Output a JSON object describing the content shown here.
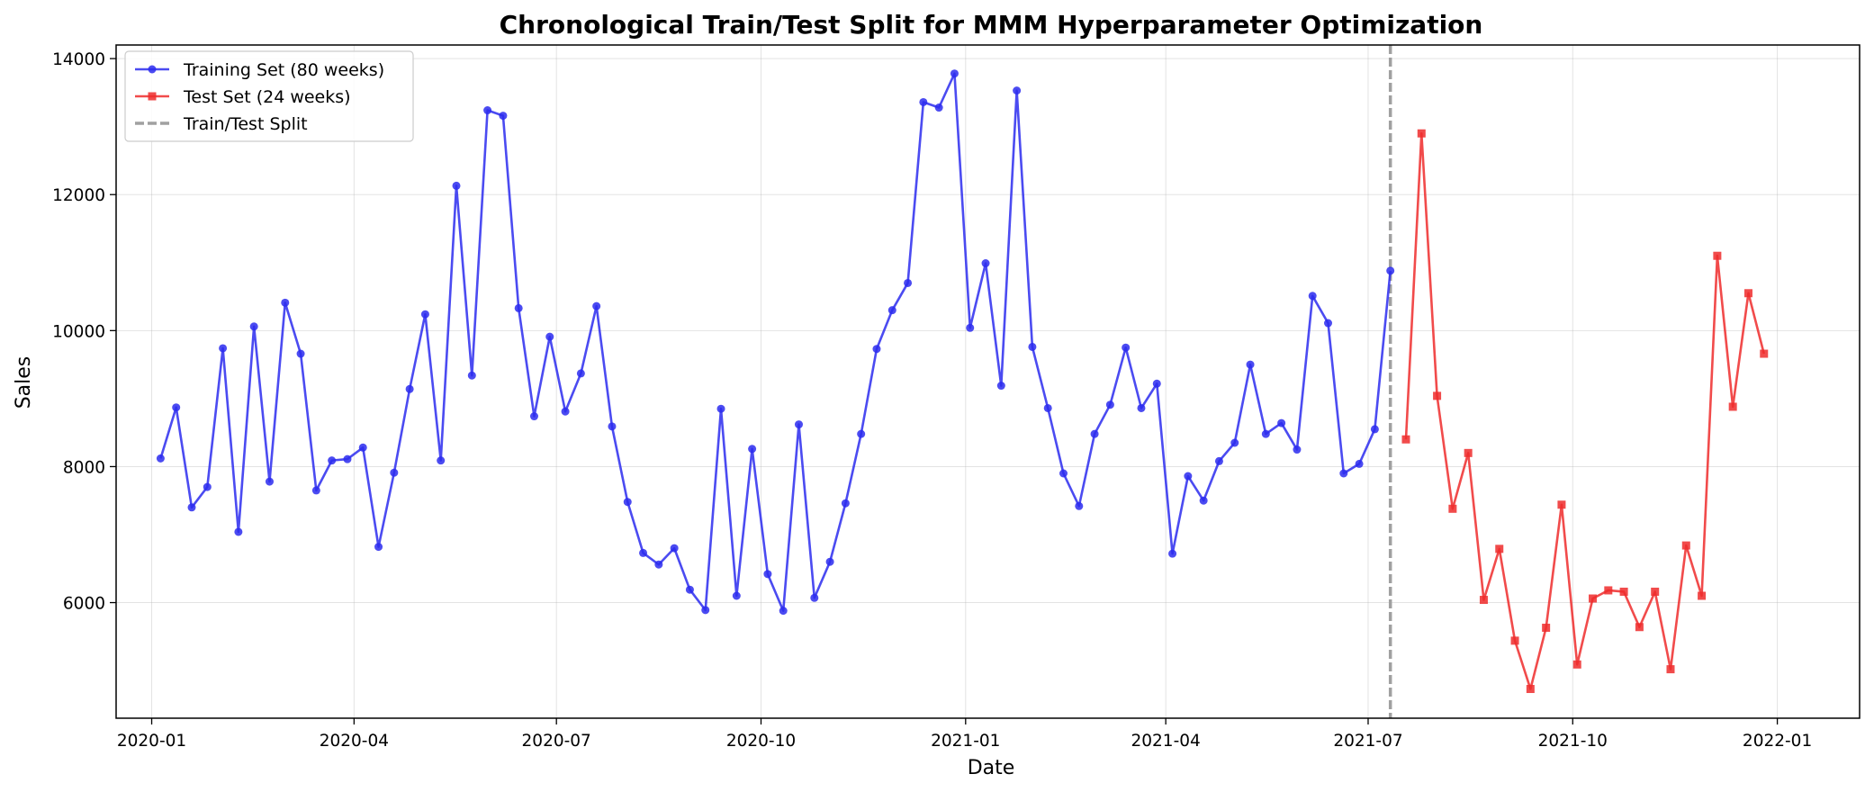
{
  "chart_data": {
    "type": "line",
    "title": "Chronological Train/Test Split for MMM Hyperparameter Optimization",
    "xlabel": "Date",
    "ylabel": "Sales",
    "x_axis_type": "date",
    "xlim": [
      "2019-12-16",
      "2022-02-07"
    ],
    "ylim": [
      4300,
      14200
    ],
    "x_ticks": [
      "2020-01-01",
      "2020-04-01",
      "2020-07-01",
      "2020-10-01",
      "2021-01-01",
      "2021-04-01",
      "2021-07-01",
      "2021-10-01",
      "2022-01-01"
    ],
    "x_tick_labels": [
      "2020-01",
      "2020-04",
      "2020-07",
      "2020-10",
      "2021-01",
      "2021-04",
      "2021-07",
      "2021-10",
      "2022-01"
    ],
    "y_ticks": [
      6000,
      8000,
      10000,
      12000,
      14000
    ],
    "y_tick_labels": [
      "6000",
      "8000",
      "10000",
      "12000",
      "14000"
    ],
    "grid": true,
    "legend_position": "top-left",
    "split_date": "2021-07-11",
    "series": [
      {
        "name": "Training Set (80 weeks)",
        "color": "#2b2bee",
        "marker": "circle",
        "start_date": "2020-01-05",
        "interval_days": 7,
        "values": [
          8120,
          8870,
          7400,
          7700,
          9740,
          7040,
          10060,
          7780,
          10410,
          9660,
          7650,
          8090,
          8110,
          8280,
          6820,
          7910,
          9140,
          10240,
          8090,
          12130,
          9340,
          13240,
          13160,
          10330,
          8740,
          9910,
          8810,
          9370,
          10360,
          8590,
          7480,
          6730,
          6560,
          6800,
          6190,
          5890,
          8850,
          6100,
          8260,
          6420,
          5880,
          8620,
          6070,
          6600,
          7460,
          8480,
          9730,
          10300,
          10700,
          13360,
          13280,
          13780,
          10040,
          10990,
          9190,
          13530,
          9760,
          8860,
          7900,
          7420,
          8480,
          8910,
          9750,
          8860,
          9220,
          6720,
          7860,
          7500,
          8080,
          8350,
          9500,
          8480,
          8640,
          8250,
          10510,
          10110,
          7900,
          8040,
          8550,
          10880
        ]
      },
      {
        "name": "Test Set (24 weeks)",
        "color": "#ee2b2b",
        "marker": "square",
        "start_date": "2021-07-18",
        "interval_days": 7,
        "values": [
          8400,
          12900,
          9040,
          7380,
          8200,
          6040,
          6790,
          5440,
          4730,
          5630,
          7440,
          5090,
          6060,
          6180,
          6160,
          5640,
          6160,
          5020,
          6840,
          6100,
          11100,
          8880,
          10550,
          9660
        ]
      }
    ],
    "reference_lines": [
      {
        "name": "Train/Test Split",
        "orientation": "vertical",
        "x": "2021-07-11",
        "color": "#a0a0a0",
        "style": "dashed"
      }
    ]
  }
}
